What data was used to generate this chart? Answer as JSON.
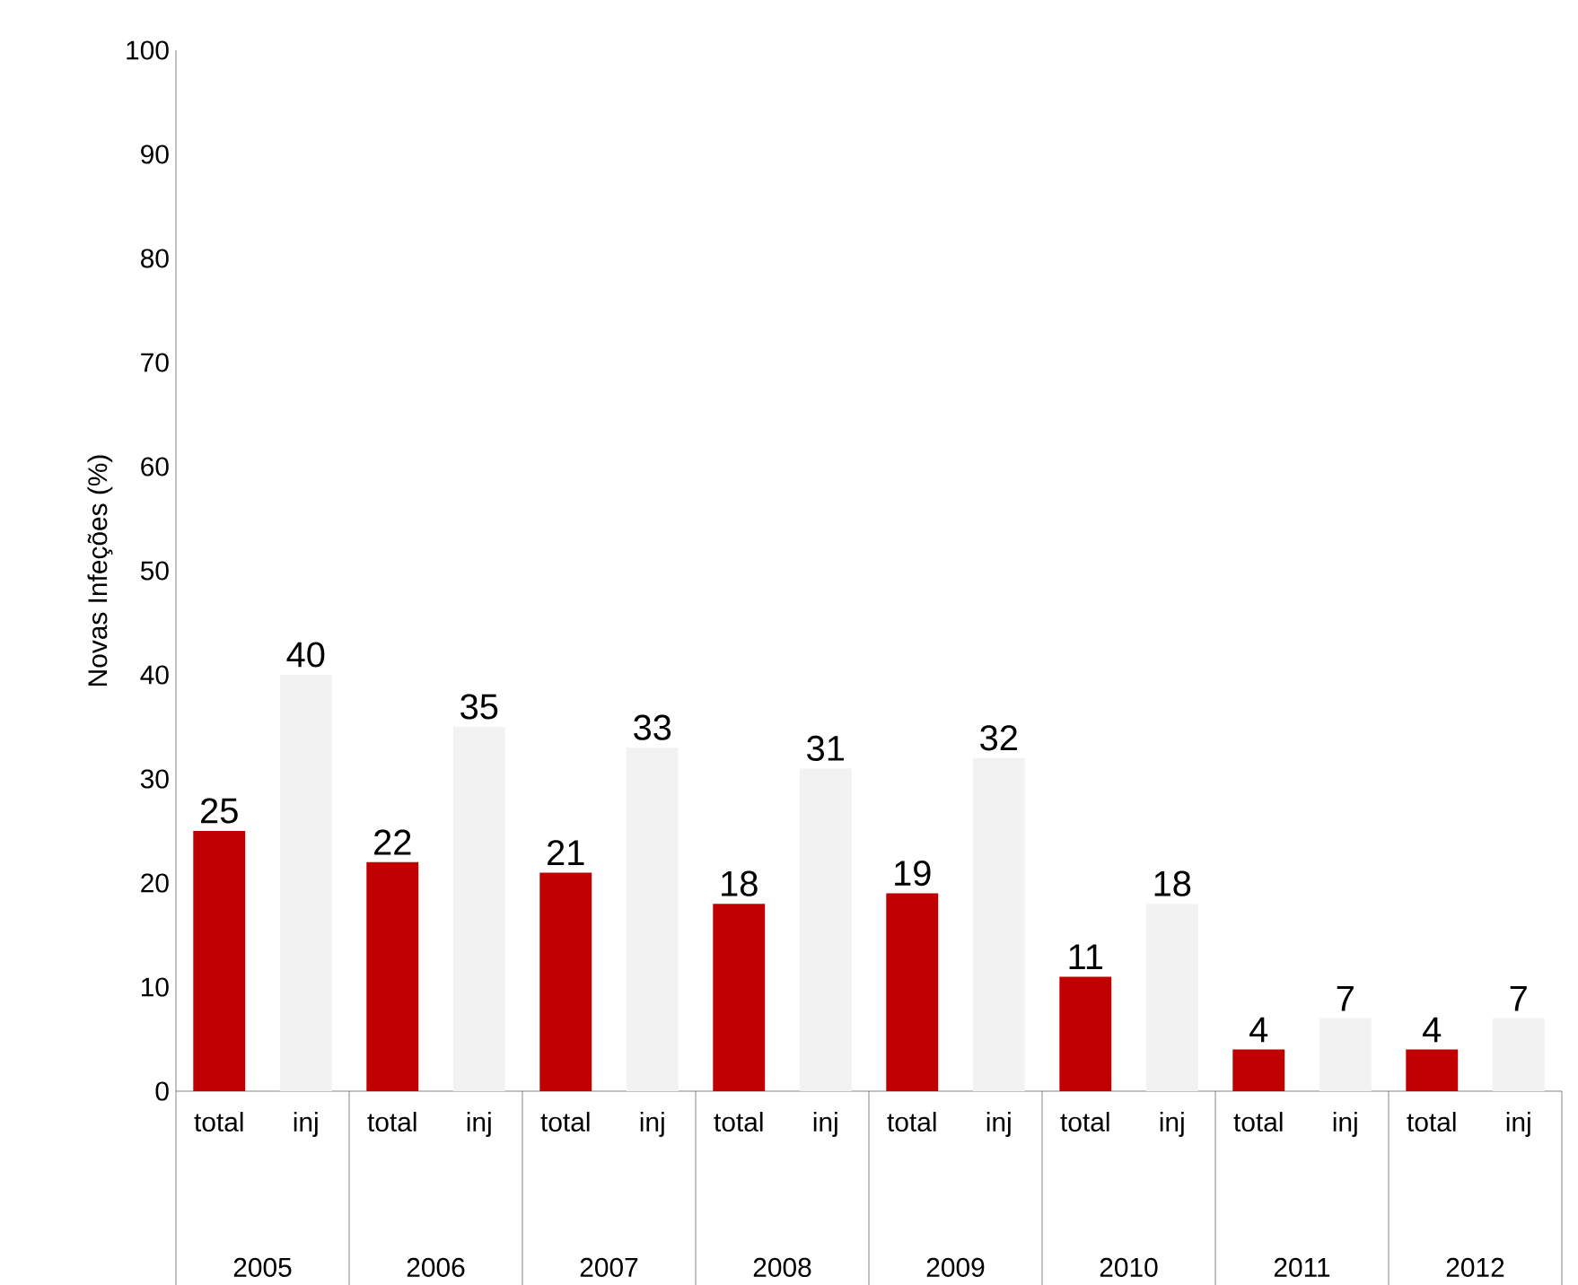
{
  "chart_data": {
    "type": "bar",
    "ylabel": "Novas Infeções  (%)",
    "categories": [
      "2005",
      "2006",
      "2007",
      "2008",
      "2009",
      "2010",
      "2011",
      "2012"
    ],
    "series": [
      {
        "name": "total",
        "color": "#c00000",
        "values": [
          25,
          22,
          21,
          18,
          19,
          11,
          4,
          4
        ]
      },
      {
        "name": "inj",
        "color": "#f2f2f2",
        "values": [
          40,
          35,
          33,
          31,
          32,
          18,
          7,
          7
        ]
      }
    ],
    "ylim": [
      0,
      100
    ],
    "yticks": [
      0,
      10,
      20,
      30,
      40,
      50,
      60,
      70,
      80,
      90,
      100
    ],
    "data_labels": true
  }
}
